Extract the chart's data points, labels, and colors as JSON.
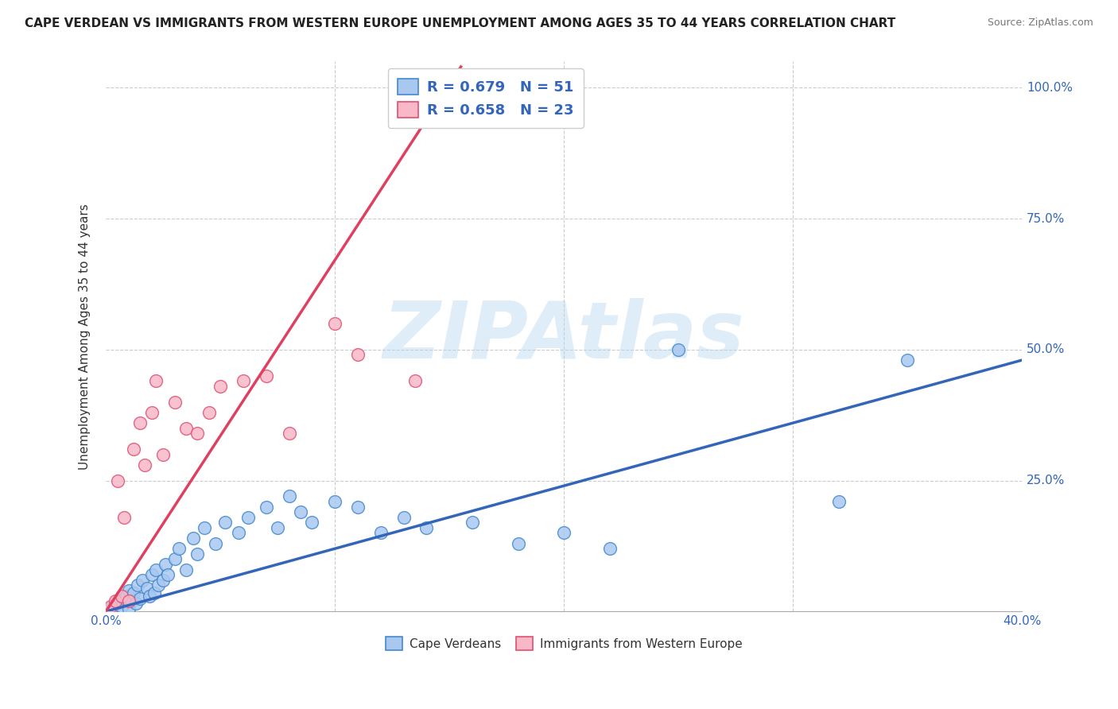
{
  "title": "CAPE VERDEAN VS IMMIGRANTS FROM WESTERN EUROPE UNEMPLOYMENT AMONG AGES 35 TO 44 YEARS CORRELATION CHART",
  "source": "Source: ZipAtlas.com",
  "ylabel": "Unemployment Among Ages 35 to 44 years",
  "xlim": [
    0.0,
    0.4
  ],
  "ylim": [
    0.0,
    1.05
  ],
  "xticks": [
    0.0,
    0.05,
    0.1,
    0.15,
    0.2,
    0.25,
    0.3,
    0.35,
    0.4
  ],
  "yticks": [
    0.0,
    0.25,
    0.5,
    0.75,
    1.0
  ],
  "ytick_labels": [
    "",
    "25.0%",
    "50.0%",
    "75.0%",
    "100.0%"
  ],
  "blue_fill": "#A8C8F0",
  "blue_edge": "#4488CC",
  "pink_fill": "#F8B8C8",
  "pink_edge": "#E05070",
  "blue_line_color": "#3366BB",
  "pink_line_color": "#E04060",
  "legend_text_color": "#3366BB",
  "R_blue": 0.679,
  "N_blue": 51,
  "R_pink": 0.658,
  "N_pink": 23,
  "blue_line_x": [
    0.0,
    0.4
  ],
  "blue_line_y": [
    0.0,
    0.48
  ],
  "pink_line_x": [
    0.0,
    0.155
  ],
  "pink_line_y": [
    0.0,
    1.04
  ],
  "blue_scatter_x": [
    0.002,
    0.003,
    0.005,
    0.006,
    0.007,
    0.008,
    0.009,
    0.01,
    0.01,
    0.011,
    0.012,
    0.013,
    0.014,
    0.015,
    0.016,
    0.018,
    0.019,
    0.02,
    0.021,
    0.022,
    0.023,
    0.025,
    0.026,
    0.027,
    0.03,
    0.032,
    0.035,
    0.038,
    0.04,
    0.043,
    0.048,
    0.052,
    0.058,
    0.062,
    0.07,
    0.075,
    0.08,
    0.085,
    0.09,
    0.1,
    0.11,
    0.12,
    0.13,
    0.14,
    0.16,
    0.18,
    0.2,
    0.22,
    0.25,
    0.32,
    0.35
  ],
  "blue_scatter_y": [
    0.005,
    0.01,
    0.015,
    0.02,
    0.01,
    0.025,
    0.03,
    0.005,
    0.04,
    0.02,
    0.035,
    0.015,
    0.05,
    0.025,
    0.06,
    0.045,
    0.03,
    0.07,
    0.035,
    0.08,
    0.05,
    0.06,
    0.09,
    0.07,
    0.1,
    0.12,
    0.08,
    0.14,
    0.11,
    0.16,
    0.13,
    0.17,
    0.15,
    0.18,
    0.2,
    0.16,
    0.22,
    0.19,
    0.17,
    0.21,
    0.2,
    0.15,
    0.18,
    0.16,
    0.17,
    0.13,
    0.15,
    0.12,
    0.5,
    0.21,
    0.48
  ],
  "pink_scatter_x": [
    0.002,
    0.004,
    0.005,
    0.007,
    0.008,
    0.01,
    0.012,
    0.015,
    0.017,
    0.02,
    0.022,
    0.025,
    0.03,
    0.035,
    0.04,
    0.045,
    0.05,
    0.06,
    0.07,
    0.08,
    0.1,
    0.11,
    0.135
  ],
  "pink_scatter_y": [
    0.01,
    0.02,
    0.25,
    0.03,
    0.18,
    0.02,
    0.31,
    0.36,
    0.28,
    0.38,
    0.44,
    0.3,
    0.4,
    0.35,
    0.34,
    0.38,
    0.43,
    0.44,
    0.45,
    0.34,
    0.55,
    0.49,
    0.44
  ],
  "background_color": "#FFFFFF",
  "grid_color": "#CCCCCC",
  "watermark_text": "ZIPAtlas",
  "watermark_color": "#B8D8F0"
}
